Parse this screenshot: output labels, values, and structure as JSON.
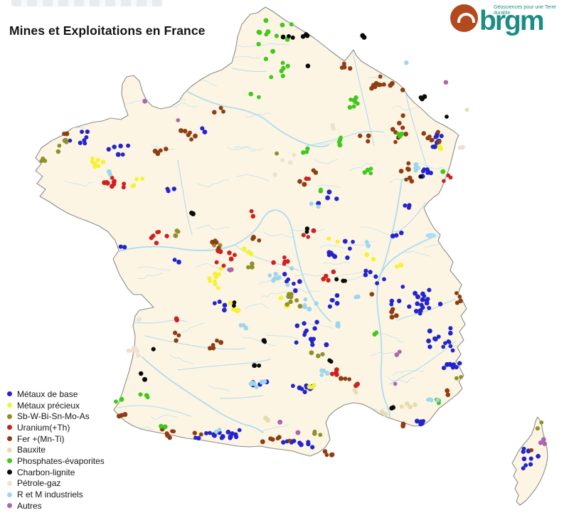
{
  "title": "Mines et Exploitations en France",
  "logo": {
    "brand": "brgm",
    "tagline": "Géosciences pour une Terre durable",
    "brand_color": "#1d8d84",
    "circle_color": "#b24a1e"
  },
  "legend": {
    "items": [
      {
        "key": "base",
        "label": "Métaux de base",
        "color": "#2424cc"
      },
      {
        "key": "precieux",
        "label": "Métaux précieux",
        "color": "#f6f233"
      },
      {
        "key": "sb",
        "label": "Sb-W-Bi-Sn-Mo-As",
        "color": "#8f8f2b"
      },
      {
        "key": "uranium",
        "label": "Uranium(+Th)",
        "color": "#cf2020"
      },
      {
        "key": "fer",
        "label": "Fer +(Mn-Ti)",
        "color": "#8f3d12"
      },
      {
        "key": "bauxite",
        "label": "Bauxite",
        "color": "#e6dcae"
      },
      {
        "key": "phosphates",
        "label": "Phosphates-évaporites",
        "color": "#3fc91c"
      },
      {
        "key": "charbon",
        "label": "Charbon-lignite",
        "color": "#0a0a0a"
      },
      {
        "key": "petrole",
        "label": "Pétrole-gaz",
        "color": "#eee0d2"
      },
      {
        "key": "rm",
        "label": "R et M industriels",
        "color": "#9cd7ee"
      },
      {
        "key": "autres",
        "label": "Autres",
        "color": "#ab67ad"
      }
    ]
  },
  "map": {
    "land_color": "#fcf5e3",
    "river_color": "#aedcf2",
    "border_color": "#8c8c8c",
    "sea_color": "#ffffff",
    "seed": 42,
    "dot_radius": 3.1,
    "clusters": [
      [
        "base",
        118,
        192,
        26,
        18,
        7
      ],
      [
        "base",
        172,
        212,
        22,
        14,
        6
      ],
      [
        "base",
        237,
        262,
        14,
        10,
        3
      ],
      [
        "base",
        285,
        180,
        10,
        8,
        2
      ],
      [
        "base",
        615,
        198,
        14,
        16,
        9
      ],
      [
        "base",
        603,
        242,
        12,
        10,
        7
      ],
      [
        "base",
        475,
        345,
        30,
        25,
        9
      ],
      [
        "base",
        525,
        390,
        18,
        14,
        6
      ],
      [
        "base",
        583,
        425,
        38,
        30,
        22
      ],
      [
        "base",
        620,
        480,
        25,
        28,
        14
      ],
      [
        "base",
        635,
        515,
        14,
        10,
        8
      ],
      [
        "base",
        430,
        465,
        30,
        25,
        13
      ],
      [
        "base",
        425,
        545,
        28,
        12,
        9
      ],
      [
        "base",
        300,
        612,
        55,
        8,
        16
      ],
      [
        "base",
        430,
        622,
        40,
        8,
        10
      ],
      [
        "base",
        590,
        592,
        12,
        8,
        6
      ],
      [
        "base",
        745,
        645,
        16,
        18,
        9
      ],
      [
        "base",
        460,
        280,
        18,
        12,
        4
      ],
      [
        "base",
        560,
        330,
        14,
        10,
        3
      ],
      [
        "base",
        410,
        395,
        20,
        15,
        6
      ],
      [
        "base",
        470,
        420,
        15,
        12,
        5
      ],
      [
        "base",
        360,
        540,
        18,
        8,
        4
      ],
      [
        "base",
        577,
        290,
        10,
        8,
        3
      ],
      [
        "base",
        170,
        345,
        8,
        6,
        2
      ],
      [
        "base",
        248,
        365,
        8,
        6,
        2
      ],
      [
        "base",
        310,
        430,
        12,
        10,
        4
      ],
      [
        "precieux",
        128,
        228,
        22,
        14,
        7
      ],
      [
        "precieux",
        196,
        252,
        14,
        10,
        4
      ],
      [
        "precieux",
        305,
        390,
        20,
        18,
        9
      ],
      [
        "precieux",
        330,
        430,
        14,
        10,
        4
      ],
      [
        "precieux",
        395,
        425,
        12,
        10,
        4
      ],
      [
        "precieux",
        350,
        355,
        10,
        8,
        3
      ],
      [
        "precieux",
        520,
        360,
        10,
        8,
        2
      ],
      [
        "precieux",
        622,
        208,
        8,
        6,
        2
      ],
      [
        "precieux",
        435,
        545,
        10,
        6,
        3
      ],
      [
        "precieux",
        468,
        340,
        8,
        6,
        2
      ],
      [
        "precieux",
        560,
        375,
        8,
        6,
        2
      ],
      [
        "sb",
        88,
        205,
        18,
        10,
        5
      ],
      [
        "sb",
        58,
        225,
        10,
        8,
        3
      ],
      [
        "sb",
        412,
        422,
        16,
        12,
        8
      ],
      [
        "sb",
        352,
        372,
        12,
        8,
        3
      ],
      [
        "sb",
        448,
        498,
        12,
        8,
        3
      ],
      [
        "sb",
        247,
        330,
        10,
        8,
        3
      ],
      [
        "sb",
        445,
        612,
        12,
        6,
        3
      ],
      [
        "sb",
        759,
        599,
        4,
        7,
        2
      ],
      [
        "sb",
        645,
        532,
        8,
        4,
        2
      ],
      [
        "sb",
        305,
        342,
        8,
        6,
        2
      ],
      [
        "uranium",
        152,
        258,
        26,
        10,
        10
      ],
      [
        "uranium",
        225,
        330,
        16,
        12,
        6
      ],
      [
        "uranium",
        318,
        362,
        22,
        16,
        8
      ],
      [
        "uranium",
        398,
        368,
        16,
        12,
        5
      ],
      [
        "uranium",
        462,
        390,
        14,
        10,
        4
      ],
      [
        "uranium",
        432,
        330,
        12,
        8,
        3
      ],
      [
        "uranium",
        472,
        520,
        14,
        8,
        4
      ],
      [
        "uranium",
        630,
        248,
        10,
        8,
        3
      ],
      [
        "uranium",
        505,
        545,
        10,
        6,
        2
      ],
      [
        "uranium",
        355,
        300,
        8,
        6,
        2
      ],
      [
        "uranium",
        248,
        450,
        6,
        5,
        2
      ],
      [
        "uranium",
        435,
        250,
        6,
        5,
        2
      ],
      [
        "fer",
        540,
        120,
        28,
        16,
        12
      ],
      [
        "fer",
        560,
        180,
        18,
        25,
        8
      ],
      [
        "fer",
        572,
        245,
        16,
        20,
        8
      ],
      [
        "fer",
        510,
        192,
        10,
        8,
        3
      ],
      [
        "fer",
        488,
        95,
        12,
        8,
        4
      ],
      [
        "fer",
        268,
        188,
        18,
        10,
        6
      ],
      [
        "fer",
        310,
        158,
        12,
        8,
        3
      ],
      [
        "fer",
        228,
        212,
        16,
        8,
        5
      ],
      [
        "fer",
        298,
        342,
        14,
        8,
        4
      ],
      [
        "fer",
        360,
        338,
        12,
        8,
        3
      ],
      [
        "fer",
        250,
        608,
        35,
        8,
        9
      ],
      [
        "fer",
        390,
        618,
        25,
        7,
        6
      ],
      [
        "fer",
        462,
        638,
        14,
        6,
        4
      ],
      [
        "fer",
        300,
        485,
        14,
        10,
        5
      ],
      [
        "fer",
        245,
        472,
        10,
        8,
        3
      ],
      [
        "fer",
        555,
        442,
        12,
        10,
        4
      ],
      [
        "fer",
        650,
        420,
        10,
        12,
        4
      ],
      [
        "fer",
        490,
        532,
        12,
        8,
        3
      ],
      [
        "fer",
        600,
        188,
        10,
        8,
        3
      ],
      [
        "fer",
        612,
        195,
        10,
        12,
        4
      ],
      [
        "fer",
        630,
        552,
        6,
        5,
        2
      ],
      [
        "fer",
        567,
        597,
        6,
        4,
        2
      ],
      [
        "fer",
        425,
        255,
        8,
        6,
        2
      ],
      [
        "fer",
        440,
        240,
        6,
        5,
        2
      ],
      [
        "fer",
        95,
        186,
        8,
        6,
        2
      ],
      [
        "fer",
        172,
        586,
        8,
        6,
        3
      ],
      [
        "fer",
        520,
        410,
        5,
        4,
        1
      ],
      [
        "fer",
        748,
        632,
        3,
        3,
        1
      ],
      [
        "bauxite",
        580,
        570,
        18,
        5,
        4
      ],
      [
        "bauxite",
        505,
        550,
        12,
        4,
        2
      ],
      [
        "bauxite",
        540,
        582,
        8,
        4,
        2
      ],
      [
        "bauxite",
        370,
        588,
        10,
        5,
        3
      ],
      [
        "bauxite",
        660,
        152,
        4,
        4,
        1
      ],
      [
        "phosphates",
        385,
        60,
        45,
        35,
        12
      ],
      [
        "phosphates",
        400,
        95,
        30,
        20,
        6
      ],
      [
        "phosphates",
        428,
        210,
        8,
        6,
        3
      ],
      [
        "phosphates",
        498,
        148,
        10,
        18,
        7
      ],
      [
        "phosphates",
        478,
        198,
        12,
        10,
        4
      ],
      [
        "phosphates",
        520,
        240,
        10,
        8,
        4
      ],
      [
        "phosphates",
        560,
        190,
        8,
        6,
        3
      ],
      [
        "phosphates",
        613,
        563,
        8,
        5,
        3
      ],
      [
        "phosphates",
        527,
        470,
        8,
        6,
        2
      ],
      [
        "phosphates",
        202,
        555,
        12,
        8,
        3
      ],
      [
        "phosphates",
        228,
        600,
        8,
        5,
        2
      ],
      [
        "phosphates",
        168,
        563,
        6,
        4,
        2
      ],
      [
        "phosphates",
        358,
        135,
        8,
        5,
        2
      ],
      [
        "phosphates",
        455,
        268,
        8,
        6,
        2
      ],
      [
        "phosphates",
        623,
        242,
        4,
        4,
        1
      ],
      [
        "charbon",
        415,
        53,
        22,
        5,
        6
      ],
      [
        "charbon",
        592,
        138,
        8,
        5,
        3
      ],
      [
        "charbon",
        628,
        166,
        4,
        4,
        1
      ],
      [
        "charbon",
        480,
        392,
        8,
        6,
        3
      ],
      [
        "charbon",
        465,
        508,
        6,
        5,
        2
      ],
      [
        "charbon",
        372,
        482,
        6,
        5,
        2
      ],
      [
        "charbon",
        362,
        512,
        6,
        4,
        2
      ],
      [
        "charbon",
        430,
        322,
        6,
        5,
        2
      ],
      [
        "charbon",
        330,
        428,
        5,
        4,
        2
      ],
      [
        "charbon",
        270,
        300,
        5,
        4,
        2
      ],
      [
        "charbon",
        552,
        573,
        5,
        4,
        2
      ],
      [
        "charbon",
        202,
        532,
        4,
        4,
        1
      ],
      [
        "charbon",
        217,
        490,
        4,
        4,
        1
      ],
      [
        "charbon",
        196,
        524,
        4,
        4,
        1
      ],
      [
        "charbon",
        590,
        250,
        4,
        4,
        1
      ],
      [
        "charbon",
        514,
        50,
        6,
        4,
        2
      ],
      [
        "charbon",
        435,
        92,
        4,
        4,
        1
      ],
      [
        "petrole",
        192,
        492,
        12,
        18,
        6
      ],
      [
        "petrole",
        196,
        448,
        8,
        6,
        2
      ],
      [
        "petrole",
        405,
        222,
        10,
        12,
        4
      ],
      [
        "petrole",
        388,
        247,
        4,
        4,
        1
      ],
      [
        "petrole",
        465,
        178,
        6,
        5,
        2
      ],
      [
        "petrole",
        648,
        205,
        5,
        5,
        2
      ],
      [
        "rm",
        390,
        390,
        25,
        20,
        8
      ],
      [
        "rm",
        432,
        432,
        20,
        15,
        6
      ],
      [
        "rm",
        448,
        520,
        14,
        10,
        4
      ],
      [
        "rm",
        362,
        538,
        16,
        8,
        6
      ],
      [
        "rm",
        587,
        234,
        8,
        8,
        4
      ],
      [
        "rm",
        152,
        244,
        6,
        5,
        2
      ],
      [
        "rm",
        608,
        562,
        10,
        6,
        4
      ],
      [
        "rm",
        440,
        287,
        8,
        5,
        2
      ],
      [
        "rm",
        340,
        460,
        10,
        8,
        3
      ],
      [
        "rm",
        475,
        455,
        10,
        8,
        3
      ],
      [
        "rm",
        500,
        418,
        8,
        6,
        2
      ],
      [
        "rm",
        520,
        345,
        8,
        6,
        3
      ],
      [
        "rm",
        305,
        605,
        6,
        4,
        2
      ],
      [
        "rm",
        573,
        88,
        4,
        4,
        1
      ],
      [
        "autres",
        205,
        145,
        4,
        4,
        1
      ],
      [
        "autres",
        250,
        168,
        4,
        4,
        1
      ],
      [
        "autres",
        323,
        379,
        6,
        5,
        3
      ],
      [
        "autres",
        394,
        594,
        6,
        4,
        2
      ],
      [
        "autres",
        420,
        608,
        5,
        4,
        2
      ],
      [
        "autres",
        560,
        497,
        5,
        4,
        2
      ],
      [
        "autres",
        558,
        538,
        4,
        4,
        1
      ],
      [
        "autres",
        763,
        620,
        5,
        8,
        3
      ],
      [
        "autres",
        628,
        118,
        4,
        4,
        1
      ],
      [
        "sb",
        390,
        215,
        4,
        4,
        1
      ]
    ]
  }
}
